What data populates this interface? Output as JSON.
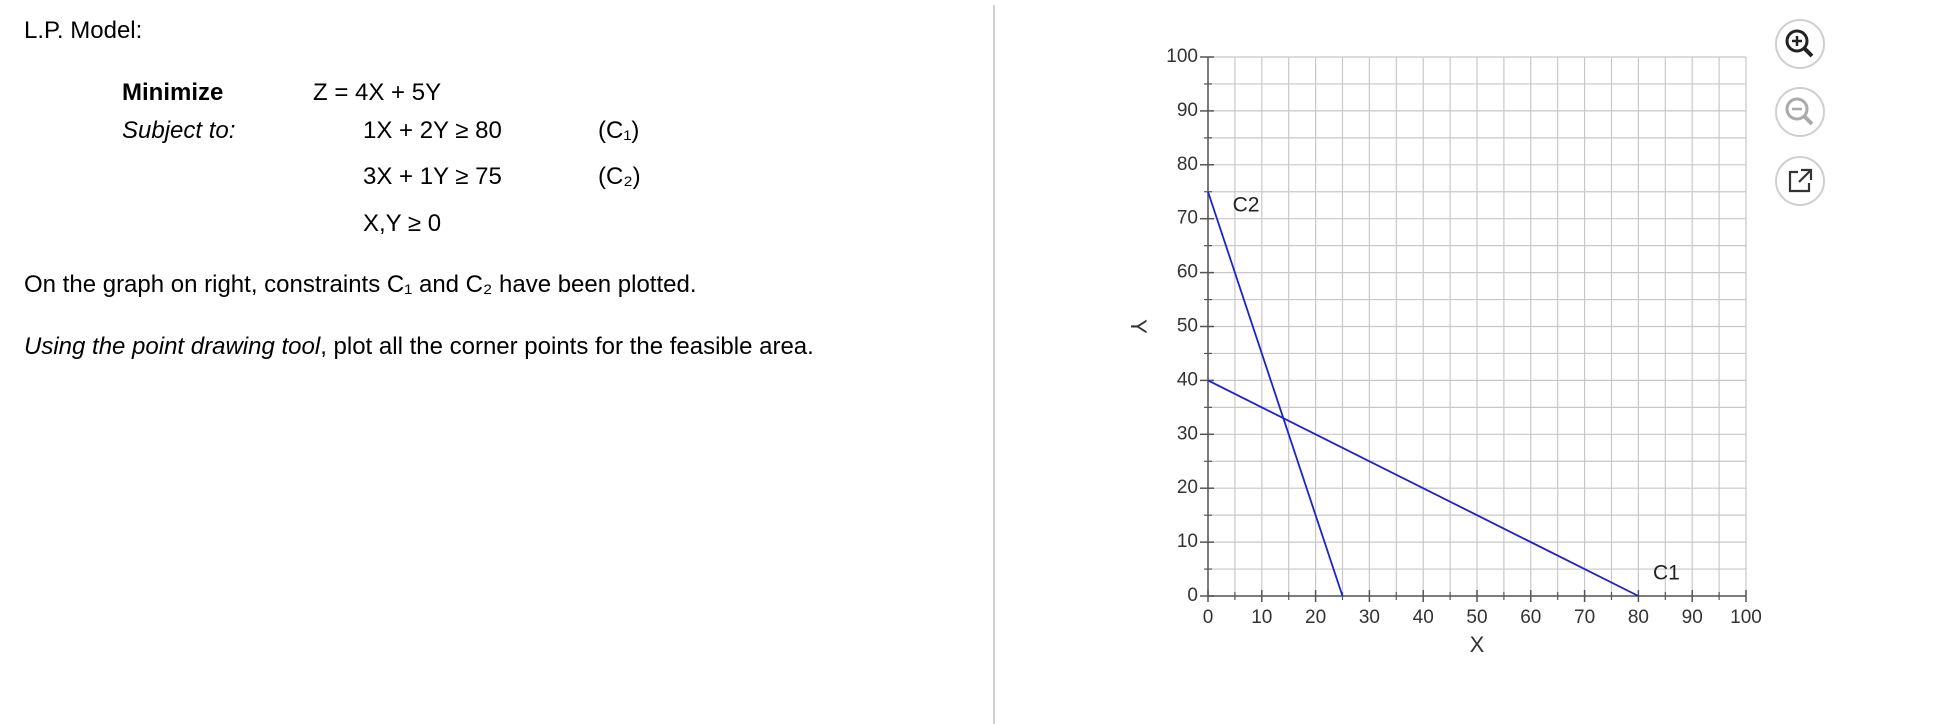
{
  "problem": {
    "heading": "L.P. Model:",
    "objective_keyword": "Minimize",
    "objective": "Z = 4X + 5Y",
    "subject_keyword": "Subject to:",
    "constraints": [
      {
        "expression": "1X + 2Y ≥ 80",
        "label": "(C₁)"
      },
      {
        "expression": "3X + 1Y ≥ 75",
        "label": "(C₂)"
      },
      {
        "expression": "X,Y ≥ 0"
      }
    ],
    "note": "On the graph on right, constraints C₁ and C₂ have been plotted.",
    "instruction_emphasis": "Using the point drawing tool",
    "instruction_rest": ", plot all the corner points for the feasible area."
  },
  "chart_data": {
    "type": "line",
    "x_label": "X",
    "y_label": "Y",
    "xlim": [
      0,
      100
    ],
    "ylim": [
      0,
      100
    ],
    "xticks": [
      0,
      10,
      20,
      30,
      40,
      50,
      60,
      70,
      80,
      90,
      100
    ],
    "yticks": [
      0,
      10,
      20,
      30,
      40,
      50,
      60,
      70,
      80,
      90,
      100
    ],
    "minor_xticks": [
      5,
      15,
      25,
      35,
      45,
      55,
      65,
      75,
      85,
      95
    ],
    "minor_yticks": [
      5,
      15,
      25,
      35,
      45,
      55,
      65,
      75,
      85,
      95
    ],
    "grid": true,
    "series": [
      {
        "name": "C1",
        "color": "#1f1fd6",
        "x": [
          0,
          80
        ],
        "values": [
          40,
          0
        ]
      },
      {
        "name": "C2",
        "color": "#1f1fd6",
        "x": [
          0,
          25
        ],
        "values": [
          75,
          0
        ]
      }
    ]
  }
}
